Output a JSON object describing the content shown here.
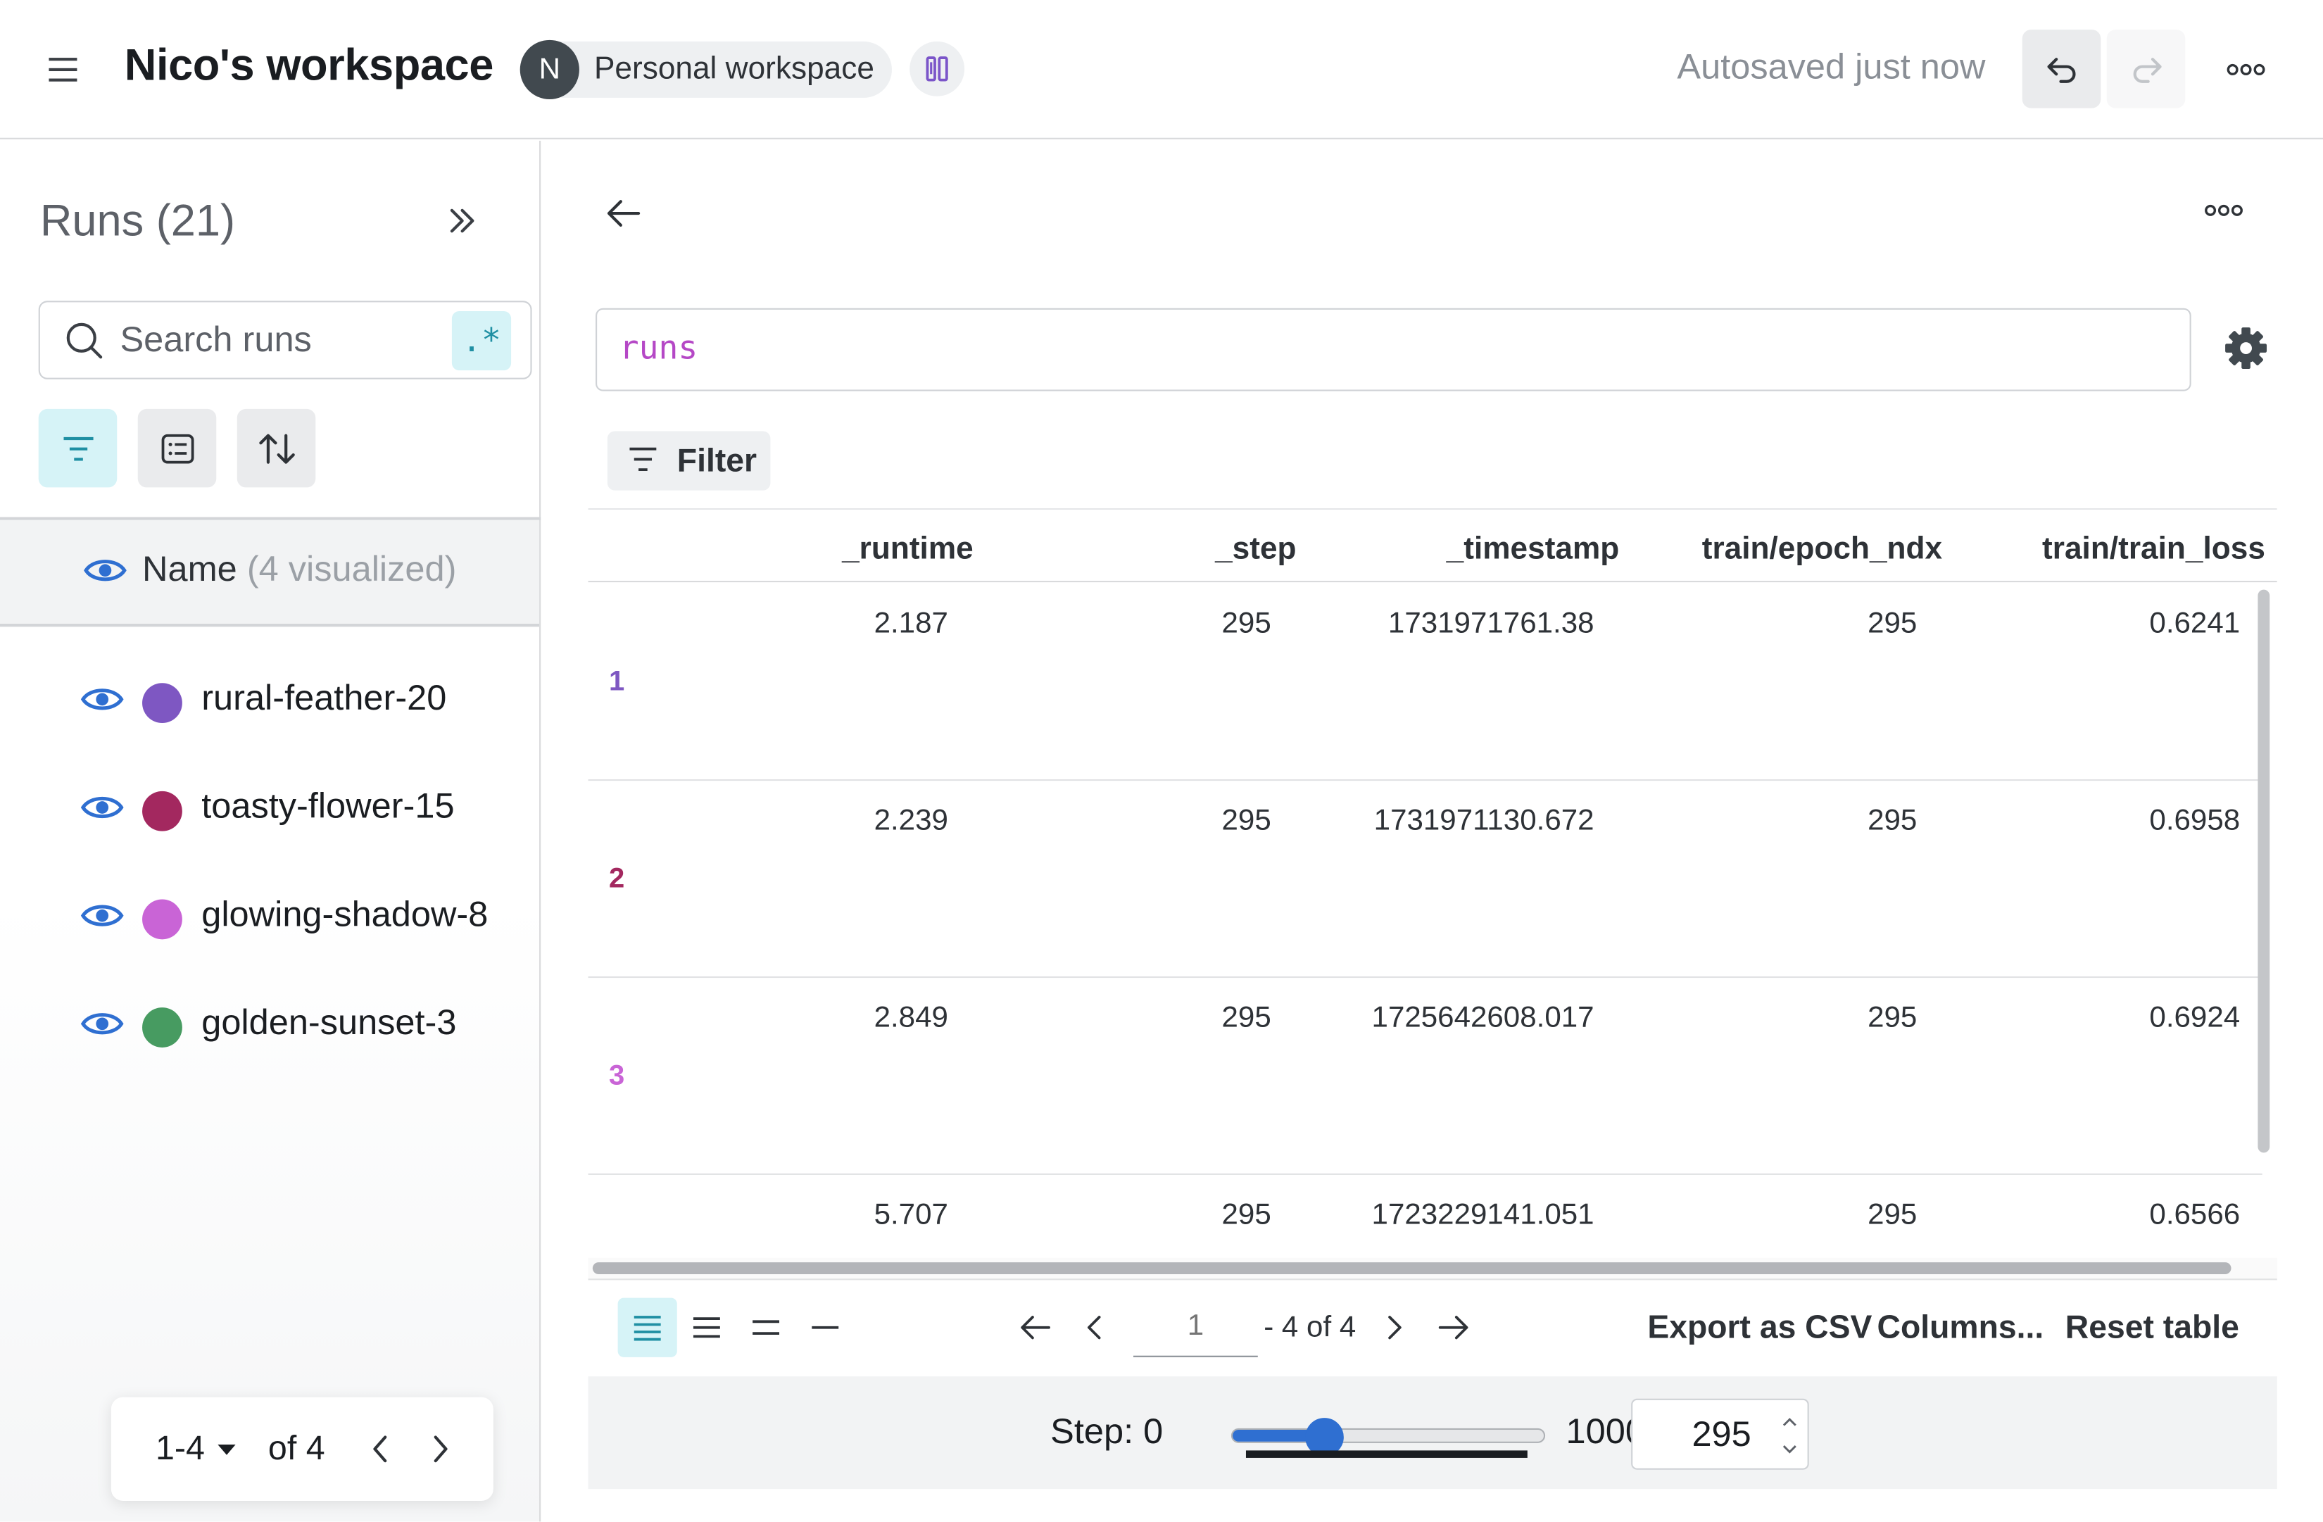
{
  "topbar": {
    "workspace_title": "Nico's workspace",
    "avatar_initial": "N",
    "workspace_type": "Personal workspace",
    "autosave_status": "Autosaved just now"
  },
  "sidebar": {
    "runs_title": "Runs (21)",
    "search_placeholder": "Search runs",
    "regex_label": ".*",
    "name_header": "Name",
    "name_header_sub": "(4 visualized)",
    "runs": [
      {
        "name": "rural-feather-20",
        "color": "#7e57c2"
      },
      {
        "name": "toasty-flower-15",
        "color": "#a3285f"
      },
      {
        "name": "glowing-shadow-8",
        "color": "#c964d6"
      },
      {
        "name": "golden-sunset-3",
        "color": "#479b61"
      }
    ],
    "pager": {
      "range": "1-4",
      "of": "of 4"
    }
  },
  "main": {
    "query": "runs",
    "filter_label": "Filter",
    "table": {
      "columns": [
        "_runtime",
        "_step",
        "_timestamp",
        "train/epoch_ndx",
        "train/train_loss"
      ],
      "rows": [
        {
          "index": "1",
          "index_color": "#7e57c2",
          "cells": [
            "2.187",
            "295",
            "1731971761.38",
            "295",
            "0.6241"
          ]
        },
        {
          "index": "2",
          "index_color": "#a3285f",
          "cells": [
            "2.239",
            "295",
            "1731971130.672",
            "295",
            "0.6958"
          ]
        },
        {
          "index": "3",
          "index_color": "#c964d6",
          "cells": [
            "2.849",
            "295",
            "1725642608.017",
            "295",
            "0.6924"
          ]
        },
        {
          "index": "",
          "index_color": "#479b61",
          "cells": [
            "5.707",
            "295",
            "1723229141.051",
            "295",
            "0.6566"
          ]
        }
      ]
    },
    "footer": {
      "page_value": "1",
      "page_of": "- 4 of 4",
      "export_label": "Export as CSV",
      "columns_label": "Columns...",
      "reset_label": "Reset table"
    },
    "step": {
      "label": "Step: 0",
      "max_label": "1000",
      "value": "295",
      "min": 0,
      "max": 1000,
      "current": 295
    }
  },
  "colors": {
    "accent": "#2f6fd1",
    "query": "#b548c6",
    "active_tool": "#d6f3f7"
  }
}
